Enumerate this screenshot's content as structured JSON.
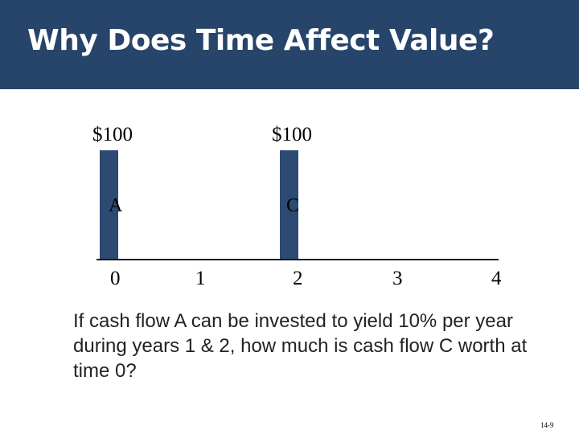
{
  "slide": {
    "title": "Why Does Time Affect Value?",
    "page_number": "14-9"
  },
  "timeline": {
    "cash_flows": [
      {
        "label": "A",
        "amount": "$100",
        "period": "0"
      },
      {
        "label": "C",
        "amount": "$100",
        "period": "2"
      }
    ],
    "ticks": [
      "0",
      "1",
      "2",
      "3",
      "4"
    ]
  },
  "question": {
    "text": "If cash flow A can be invested to yield 10% per year during years 1 & 2, how much is cash flow C worth at time 0?"
  },
  "colors": {
    "header": "#27446b",
    "bar": "#2c4a73"
  }
}
